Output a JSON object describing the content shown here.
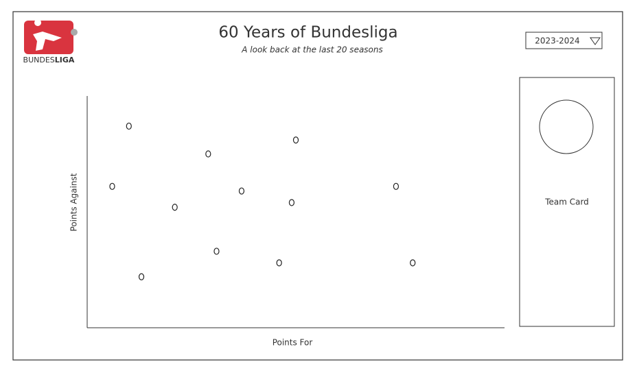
{
  "header": {
    "title": "60 Years of Bundesliga",
    "subtitle": "A look back at the last 20 seasons"
  },
  "logo": {
    "text_light": "BUNDES",
    "text_bold": "LIGA"
  },
  "dropdown": {
    "value": "2023-2024"
  },
  "card": {
    "label": "Team Card"
  },
  "chart_data": {
    "type": "scatter",
    "x_label": "Points For",
    "y_label": "Points Against",
    "x": [
      10,
      29,
      50,
      6,
      21,
      37,
      49,
      74,
      31,
      13,
      46,
      78
    ],
    "values": [
      87,
      75,
      81,
      61,
      52,
      59,
      54,
      61,
      33,
      22,
      28,
      28
    ],
    "xlim": [
      0,
      100
    ],
    "ylim": [
      0,
      100
    ],
    "color": "#222222"
  }
}
